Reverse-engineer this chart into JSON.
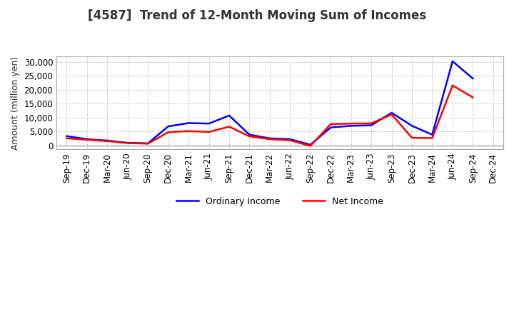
{
  "title": "[4587]  Trend of 12-Month Moving Sum of Incomes",
  "ylabel": "Amount (million yen)",
  "x_labels": [
    "Sep-19",
    "Dec-19",
    "Mar-20",
    "Jun-20",
    "Sep-20",
    "Dec-20",
    "Mar-21",
    "Jun-21",
    "Sep-21",
    "Dec-21",
    "Mar-22",
    "Jun-22",
    "Sep-22",
    "Dec-22",
    "Mar-23",
    "Jun-23",
    "Sep-23",
    "Dec-23",
    "Mar-24",
    "Jun-24",
    "Sep-24",
    "Dec-24"
  ],
  "ordinary_income": [
    3300,
    2200,
    1700,
    900,
    700,
    6800,
    8000,
    7800,
    10700,
    3800,
    2500,
    2200,
    200,
    6400,
    7000,
    7200,
    11700,
    7000,
    3800,
    30200,
    24000,
    null
  ],
  "net_income": [
    2500,
    2000,
    1500,
    800,
    600,
    4700,
    5100,
    4800,
    6700,
    3200,
    2200,
    1800,
    -200,
    7600,
    7800,
    7900,
    11100,
    2700,
    2600,
    21500,
    17200,
    null
  ],
  "ordinary_color": "#0000FF",
  "net_color": "#FF0000",
  "ylim": [
    -1500,
    32000
  ],
  "yticks": [
    0,
    5000,
    10000,
    15000,
    20000,
    25000,
    30000
  ],
  "background_color": "#ffffff",
  "grid_color": "#999999",
  "title_color": "#333333",
  "line_width": 1.8,
  "title_fontsize": 12,
  "ylabel_fontsize": 9,
  "tick_fontsize": 8.5,
  "legend_fontsize": 9
}
